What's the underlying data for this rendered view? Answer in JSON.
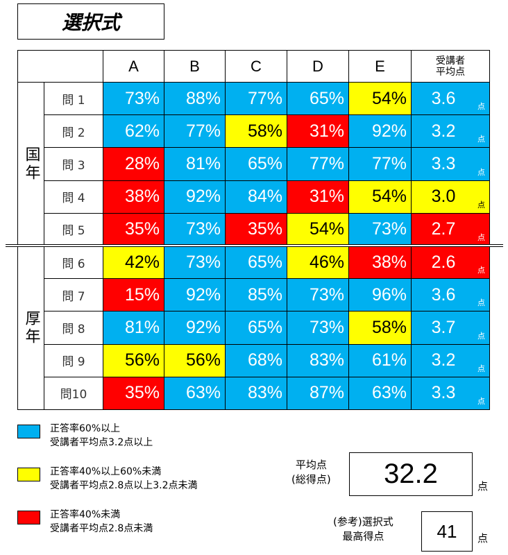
{
  "title": "選択式",
  "header": {
    "columns": [
      "A",
      "B",
      "C",
      "D",
      "E"
    ],
    "avg": "受講者\n平均点",
    "unit": "点"
  },
  "groups": [
    {
      "label": "国年",
      "rows": [
        {
          "label": "問 1",
          "cells": [
            {
              "text": "73%",
              "color": "#00b0f0"
            },
            {
              "text": "88%",
              "color": "#00b0f0"
            },
            {
              "text": "77%",
              "color": "#00b0f0"
            },
            {
              "text": "65%",
              "color": "#00b0f0"
            },
            {
              "text": "54%",
              "color": "#ffff00"
            }
          ],
          "avg": {
            "text": "3.6",
            "color": "#00b0f0"
          }
        },
        {
          "label": "問 2",
          "cells": [
            {
              "text": "62%",
              "color": "#00b0f0"
            },
            {
              "text": "77%",
              "color": "#00b0f0"
            },
            {
              "text": "58%",
              "color": "#ffff00"
            },
            {
              "text": "31%",
              "color": "#ff0000"
            },
            {
              "text": "92%",
              "color": "#00b0f0"
            }
          ],
          "avg": {
            "text": "3.2",
            "color": "#00b0f0"
          }
        },
        {
          "label": "問 3",
          "cells": [
            {
              "text": "28%",
              "color": "#ff0000"
            },
            {
              "text": "81%",
              "color": "#00b0f0"
            },
            {
              "text": "65%",
              "color": "#00b0f0"
            },
            {
              "text": "77%",
              "color": "#00b0f0"
            },
            {
              "text": "77%",
              "color": "#00b0f0"
            }
          ],
          "avg": {
            "text": "3.3",
            "color": "#00b0f0"
          }
        },
        {
          "label": "問 4",
          "cells": [
            {
              "text": "38%",
              "color": "#ff0000"
            },
            {
              "text": "92%",
              "color": "#00b0f0"
            },
            {
              "text": "84%",
              "color": "#00b0f0"
            },
            {
              "text": "31%",
              "color": "#ff0000"
            },
            {
              "text": "54%",
              "color": "#ffff00"
            }
          ],
          "avg": {
            "text": "3.0",
            "color": "#ffff00"
          }
        },
        {
          "label": "問 5",
          "cells": [
            {
              "text": "35%",
              "color": "#ff0000"
            },
            {
              "text": "73%",
              "color": "#00b0f0"
            },
            {
              "text": "35%",
              "color": "#ff0000"
            },
            {
              "text": "54%",
              "color": "#ffff00"
            },
            {
              "text": "73%",
              "color": "#00b0f0"
            }
          ],
          "avg": {
            "text": "2.7",
            "color": "#ff0000"
          }
        }
      ]
    },
    {
      "label": "厚年",
      "rows": [
        {
          "label": "問 6",
          "cells": [
            {
              "text": "42%",
              "color": "#ffff00"
            },
            {
              "text": "73%",
              "color": "#00b0f0"
            },
            {
              "text": "65%",
              "color": "#00b0f0"
            },
            {
              "text": "46%",
              "color": "#ffff00"
            },
            {
              "text": "38%",
              "color": "#ff0000"
            }
          ],
          "avg": {
            "text": "2.6",
            "color": "#ff0000"
          }
        },
        {
          "label": "問 7",
          "cells": [
            {
              "text": "15%",
              "color": "#ff0000"
            },
            {
              "text": "92%",
              "color": "#00b0f0"
            },
            {
              "text": "85%",
              "color": "#00b0f0"
            },
            {
              "text": "73%",
              "color": "#00b0f0"
            },
            {
              "text": "96%",
              "color": "#00b0f0"
            }
          ],
          "avg": {
            "text": "3.6",
            "color": "#00b0f0"
          }
        },
        {
          "label": "問 8",
          "cells": [
            {
              "text": "81%",
              "color": "#00b0f0"
            },
            {
              "text": "92%",
              "color": "#00b0f0"
            },
            {
              "text": "65%",
              "color": "#00b0f0"
            },
            {
              "text": "73%",
              "color": "#00b0f0"
            },
            {
              "text": "58%",
              "color": "#ffff00"
            }
          ],
          "avg": {
            "text": "3.7",
            "color": "#00b0f0"
          }
        },
        {
          "label": "問 9",
          "cells": [
            {
              "text": "56%",
              "color": "#ffff00"
            },
            {
              "text": "56%",
              "color": "#ffff00"
            },
            {
              "text": "68%",
              "color": "#00b0f0"
            },
            {
              "text": "83%",
              "color": "#00b0f0"
            },
            {
              "text": "61%",
              "color": "#00b0f0"
            }
          ],
          "avg": {
            "text": "3.2",
            "color": "#00b0f0"
          }
        },
        {
          "label": "問10",
          "cells": [
            {
              "text": "35%",
              "color": "#ff0000"
            },
            {
              "text": "63%",
              "color": "#00b0f0"
            },
            {
              "text": "83%",
              "color": "#00b0f0"
            },
            {
              "text": "87%",
              "color": "#00b0f0"
            },
            {
              "text": "63%",
              "color": "#00b0f0"
            }
          ],
          "avg": {
            "text": "3.3",
            "color": "#00b0f0"
          }
        }
      ]
    }
  ],
  "legend": [
    {
      "color": "#00b0f0",
      "text": "正答率60%以上\n受講者平均点3.2点以上"
    },
    {
      "color": "#ffff00",
      "text": "正答率40%以上60%未満\n受講者平均点2.8点以上3.2点未満"
    },
    {
      "color": "#ff0000",
      "text": "正答率40%未満\n受講者平均点2.8点未満"
    }
  ],
  "summary": [
    {
      "label": "平均点\n(総得点)",
      "value": "32.2"
    },
    {
      "label": "(参考)選択式\n最高得点",
      "value": "41"
    }
  ]
}
